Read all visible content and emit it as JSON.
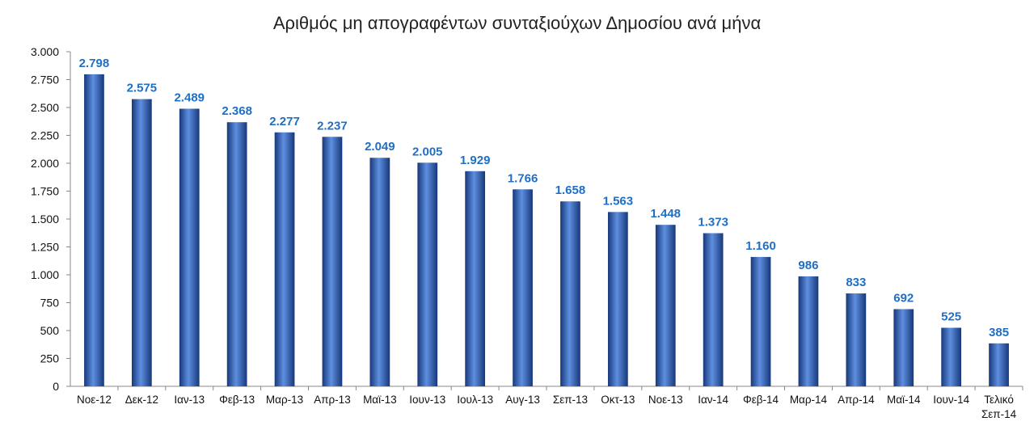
{
  "chart_data": {
    "type": "bar",
    "title": "Αριθμός μη απογραφέντων συνταξιούχων Δημοσίου ανά μήνα",
    "categories": [
      "Νοε-12",
      "Δεκ-12",
      "Ιαν-13",
      "Φεβ-13",
      "Μαρ-13",
      "Απρ-13",
      "Μαϊ-13",
      "Ιουν-13",
      "Ιουλ-13",
      "Αυγ-13",
      "Σεπ-13",
      "Οκτ-13",
      "Νοε-13",
      "Ιαν-14",
      "Φεβ-14",
      "Μαρ-14",
      "Απρ-14",
      "Μαϊ-14",
      "Ιουν-14",
      "Τελικό Σεπ-14"
    ],
    "values": [
      2798,
      2575,
      2489,
      2368,
      2277,
      2237,
      2049,
      2005,
      1929,
      1766,
      1658,
      1563,
      1448,
      1373,
      1160,
      986,
      833,
      692,
      525,
      385
    ],
    "data_labels": [
      "2.798",
      "2.575",
      "2.489",
      "2.368",
      "2.277",
      "2.237",
      "2.049",
      "2.005",
      "1.929",
      "1.766",
      "1.658",
      "1.563",
      "1.448",
      "1.373",
      "1.160",
      "986",
      "833",
      "692",
      "525",
      "385"
    ],
    "y_ticks": [
      0,
      250,
      500,
      750,
      1000,
      1250,
      1500,
      1750,
      2000,
      2250,
      2500,
      2750,
      3000
    ],
    "y_tick_labels": [
      "0",
      "250",
      "500",
      "750",
      "1.000",
      "1.250",
      "1.500",
      "1.750",
      "2.000",
      "2.250",
      "2.500",
      "2.750",
      "3.000"
    ],
    "ylim": [
      0,
      3000
    ],
    "xlabel": "",
    "ylabel": "",
    "grid": false,
    "legend": "none",
    "colors": {
      "bar": "#2E62B8",
      "bar_light": "#5E8FE0",
      "bar_dark": "#17387A",
      "label": "#1F6FC5",
      "axis": "#888888"
    }
  }
}
